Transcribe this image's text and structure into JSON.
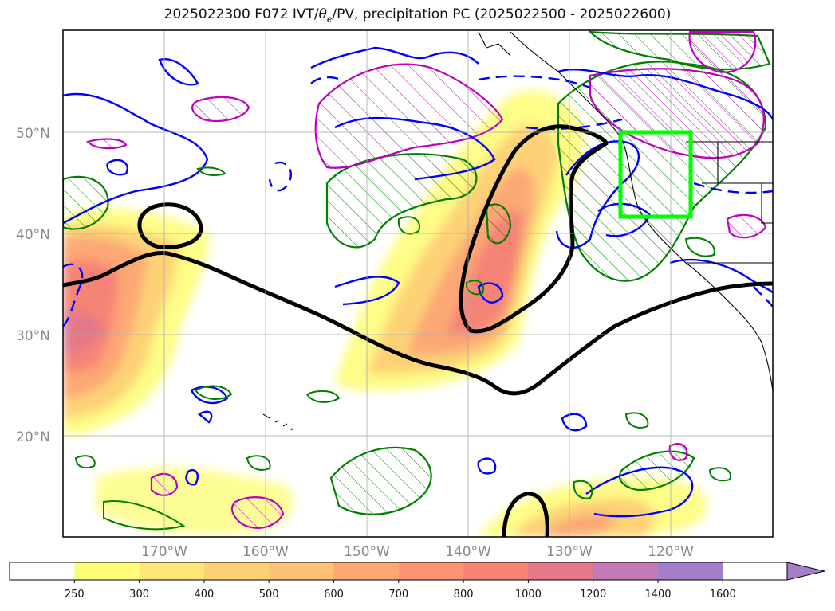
{
  "title": {
    "prefix": "2025022300 F072 IVT/",
    "theta_symbol": "θ",
    "theta_sub": "e",
    "suffix": "/PV, precipitation PC (2025022500 - 2025022600)"
  },
  "map": {
    "lat_labels": [
      "20°N",
      "30°N",
      "40°N",
      "50°N"
    ],
    "lon_labels": [
      "170°W",
      "160°W",
      "150°W",
      "140°W",
      "130°W",
      "120°W"
    ],
    "colors": {
      "pv_contour": "#000000",
      "theta_e": "#0000ff",
      "precip": "#008000",
      "pv_hatch": "#bf00bf",
      "region_box": "#00ff00"
    }
  },
  "colorbar": {
    "ticks": [
      "250",
      "300",
      "400",
      "500",
      "600",
      "700",
      "800",
      "1000",
      "1200",
      "1400",
      "1600"
    ],
    "colors": [
      "#ffffff",
      "#fdfd7a",
      "#fde577",
      "#fdd277",
      "#fdc276",
      "#fca875",
      "#fc9574",
      "#f68476",
      "#e47888",
      "#c37ab6",
      "#a47ec8"
    ],
    "extend": "max"
  }
}
